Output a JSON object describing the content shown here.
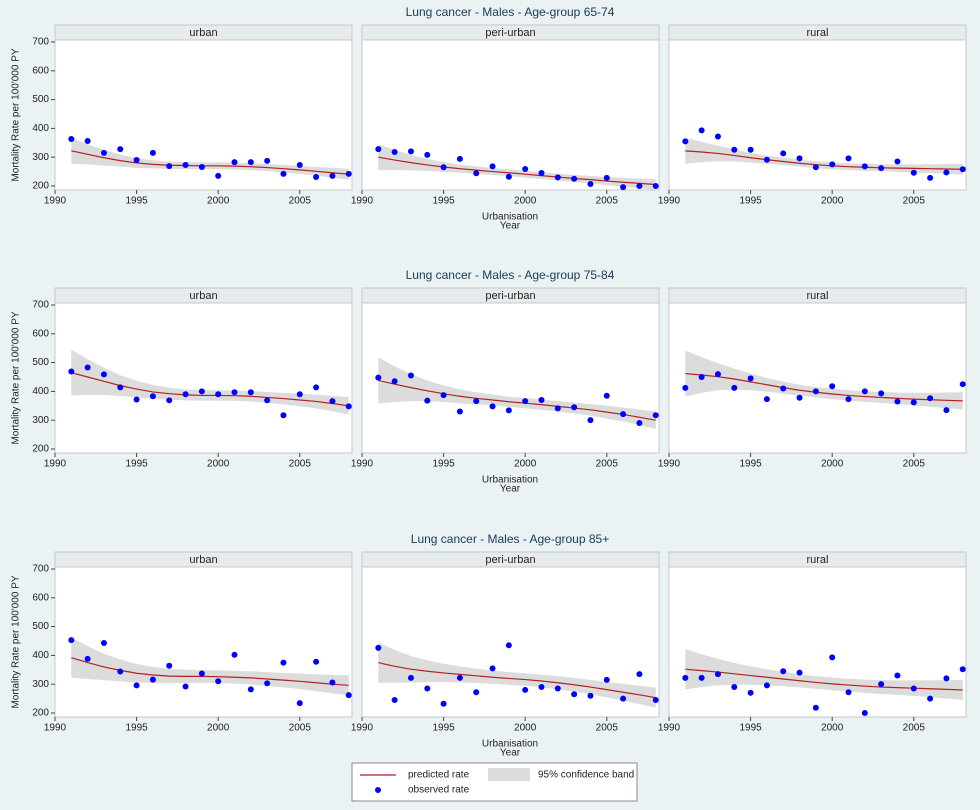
{
  "chart_data": {
    "type": "line",
    "ylabel": "Mortality Rate per 100'000 PY",
    "xlabel": "Urbanisation",
    "xlabel2": "Year",
    "x": [
      1991,
      1992,
      1993,
      1994,
      1995,
      1996,
      1997,
      1998,
      1999,
      2000,
      2001,
      2002,
      2003,
      2004,
      2005,
      2006,
      2007,
      2008
    ],
    "xlim": [
      1990,
      2008.2
    ],
    "xticks": [
      1990,
      1995,
      2000,
      2005
    ],
    "ylim": [
      186,
      707
    ],
    "yticks": [
      200,
      300,
      400,
      500,
      600,
      700
    ],
    "series": [
      {
        "name": "predicted rate",
        "color": "#b22222"
      },
      {
        "name": "95% confidence band",
        "color": "#dcdcdc"
      },
      {
        "name": "observed rate",
        "color": "#0000ff"
      }
    ],
    "rows": [
      {
        "title": "Lung cancer - Males - Age-group 65-74",
        "panels": [
          {
            "title": "urban",
            "observed": [
              363,
              356,
              315,
              328,
              290,
              315,
              269,
              273,
              266,
              235,
              283,
              283,
              287,
              242,
              273,
              231,
              235,
              242
            ],
            "predicted": [
              322,
              310,
              298,
              288,
              280,
              275,
              272,
              271,
              270,
              270,
              269,
              267,
              264,
              260,
              256,
              251,
              246,
              241
            ],
            "lower": [
              277,
              275,
              271,
              267,
              263,
              261,
              259,
              259,
              258,
              258,
              257,
              255,
              252,
              247,
              242,
              236,
              229,
              222
            ],
            "upper": [
              367,
              345,
              325,
              309,
              297,
              289,
              285,
              283,
              282,
              282,
              281,
              279,
              276,
              273,
              270,
              266,
              263,
              260
            ]
          },
          {
            "title": "peri-urban",
            "observed": [
              328,
              318,
              320,
              308,
              265,
              294,
              244,
              268,
              232,
              259,
              245,
              230,
              225,
              207,
              228,
              196,
              200,
              200
            ],
            "predicted": [
              300,
              290,
              281,
              273,
              266,
              260,
              255,
              250,
              246,
              241,
              236,
              231,
              226,
              222,
              217,
              213,
              209,
              205
            ],
            "lower": [
              255,
              255,
              254,
              252,
              249,
              246,
              242,
              238,
              234,
              229,
              224,
              219,
              214,
              209,
              203,
              198,
              192,
              186
            ],
            "upper": [
              345,
              325,
              308,
              294,
              283,
              274,
              268,
              262,
              258,
              253,
              248,
              243,
              238,
              235,
              231,
              228,
              226,
              224
            ]
          },
          {
            "title": "rural",
            "observed": [
              355,
              393,
              372,
              326,
              326,
              291,
              313,
              296,
              265,
              275,
              296,
              268,
              262,
              285,
              246,
              228,
              247,
              258
            ],
            "predicted": [
              322,
              318,
              313,
              306,
              298,
              291,
              285,
              279,
              274,
              270,
              267,
              265,
              263,
              262,
              261,
              260,
              259,
              258
            ],
            "lower": [
              277,
              283,
              286,
              285,
              281,
              277,
              272,
              267,
              262,
              258,
              255,
              253,
              251,
              249,
              247,
              245,
              242,
              239
            ],
            "upper": [
              367,
              353,
              340,
              327,
              315,
              305,
              298,
              291,
              286,
              282,
              279,
              277,
              275,
              275,
              275,
              275,
              276,
              277
            ]
          }
        ]
      },
      {
        "title": "Lung cancer - Males - Age-group 75-84",
        "panels": [
          {
            "title": "urban",
            "observed": [
              469,
              483,
              459,
              414,
              372,
              383,
              369,
              390,
              400,
              390,
              397,
              397,
              369,
              317,
              390,
              414,
              366,
              348
            ],
            "predicted": [
              465,
              450,
              435,
              420,
              408,
              398,
              392,
              388,
              386,
              386,
              385,
              383,
              379,
              375,
              370,
              365,
              358,
              350
            ],
            "lower": [
              385,
              388,
              388,
              384,
              379,
              374,
              371,
              369,
              368,
              368,
              367,
              365,
              360,
              355,
              348,
              341,
              331,
              320
            ],
            "upper": [
              545,
              512,
              482,
              456,
              437,
              422,
              413,
              407,
              404,
              404,
              403,
              401,
              398,
              395,
              392,
              389,
              385,
              380
            ]
          },
          {
            "title": "peri-urban",
            "observed": [
              448,
              435,
              455,
              368,
              387,
              330,
              366,
              348,
              334,
              366,
              370,
              341,
              345,
              300,
              385,
              321,
              290,
              317
            ],
            "predicted": [
              438,
              425,
              413,
              402,
              392,
              383,
              376,
              370,
              364,
              359,
              354,
              348,
              342,
              336,
              328,
              320,
              310,
              300
            ],
            "lower": [
              358,
              363,
              366,
              366,
              363,
              359,
              355,
              351,
              346,
              341,
              336,
              330,
              323,
              316,
              306,
              296,
              283,
              270
            ],
            "upper": [
              518,
              487,
              460,
              438,
              421,
              407,
              397,
              389,
              382,
              377,
              372,
              366,
              361,
              356,
              350,
              344,
              337,
              330
            ]
          },
          {
            "title": "rural",
            "observed": [
              412,
              450,
              460,
              412,
              445,
              373,
              410,
              378,
              400,
              418,
              373,
              400,
              393,
              365,
              362,
              376,
              335,
              425
            ],
            "predicted": [
              462,
              457,
              451,
              443,
              433,
              423,
              413,
              404,
              397,
              391,
              386,
              382,
              379,
              376,
              373,
              371,
              369,
              367
            ],
            "lower": [
              382,
              395,
              404,
              407,
              404,
              399,
              392,
              385,
              379,
              373,
              368,
              364,
              360,
              356,
              351,
              347,
              342,
              337
            ],
            "upper": [
              542,
              519,
              498,
              479,
              462,
              447,
              434,
              423,
              415,
              409,
              404,
              400,
              398,
              396,
              395,
              395,
              396,
              397
            ]
          }
        ]
      },
      {
        "title": "Lung cancer - Males - Age-group 85+",
        "panels": [
          {
            "title": "urban",
            "observed": [
              453,
              388,
              443,
              344,
              296,
              316,
              364,
              292,
              337,
              310,
              402,
              282,
              303,
              375,
              234,
              378,
              306,
              262
            ],
            "predicted": [
              392,
              375,
              360,
              348,
              338,
              332,
              328,
              327,
              327,
              326,
              324,
              322,
              318,
              314,
              310,
              305,
              300,
              296
            ],
            "lower": [
              322,
              318,
              314,
              310,
              306,
              304,
              303,
              304,
              305,
              304,
              302,
              299,
              294,
              289,
              283,
              276,
              268,
              261
            ],
            "upper": [
              462,
              432,
              406,
              386,
              370,
              360,
              353,
              350,
              349,
              348,
              346,
              345,
              342,
              339,
              337,
              334,
              332,
              331
            ]
          },
          {
            "title": "peri-urban",
            "observed": [
              426,
              245,
              322,
              285,
              232,
              322,
              272,
              355,
              435,
              280,
              290,
              285,
              265,
              260,
              315,
              250,
              335,
              245
            ],
            "predicted": [
              375,
              362,
              352,
              345,
              339,
              334,
              329,
              324,
              320,
              316,
              311,
              305,
              298,
              290,
              281,
              272,
              263,
              253
            ],
            "lower": [
              305,
              305,
              306,
              307,
              307,
              306,
              304,
              301,
              298,
              294,
              289,
              282,
              274,
              265,
              254,
              243,
              231,
              218
            ],
            "upper": [
              445,
              419,
              398,
              383,
              371,
              362,
              354,
              347,
              342,
              338,
              333,
              328,
              322,
              315,
              308,
              301,
              295,
              288
            ]
          },
          {
            "title": "rural",
            "observed": [
              322,
              322,
              335,
              290,
              270,
              296,
              345,
              340,
              218,
              393,
              272,
              200,
              300,
              330,
              285,
              250,
              320,
              352
            ],
            "predicted": [
              352,
              347,
              342,
              336,
              330,
              324,
              318,
              312,
              306,
              301,
              297,
              293,
              290,
              288,
              286,
              284,
              282,
              280
            ],
            "lower": [
              282,
              290,
              296,
              298,
              298,
              296,
              293,
              289,
              284,
              279,
              275,
              270,
              266,
              263,
              259,
              255,
              250,
              245
            ],
            "upper": [
              422,
              404,
              388,
              374,
              362,
              352,
              343,
              335,
              328,
              323,
              319,
              316,
              314,
              313,
              313,
              313,
              314,
              315
            ]
          }
        ]
      }
    ]
  }
}
